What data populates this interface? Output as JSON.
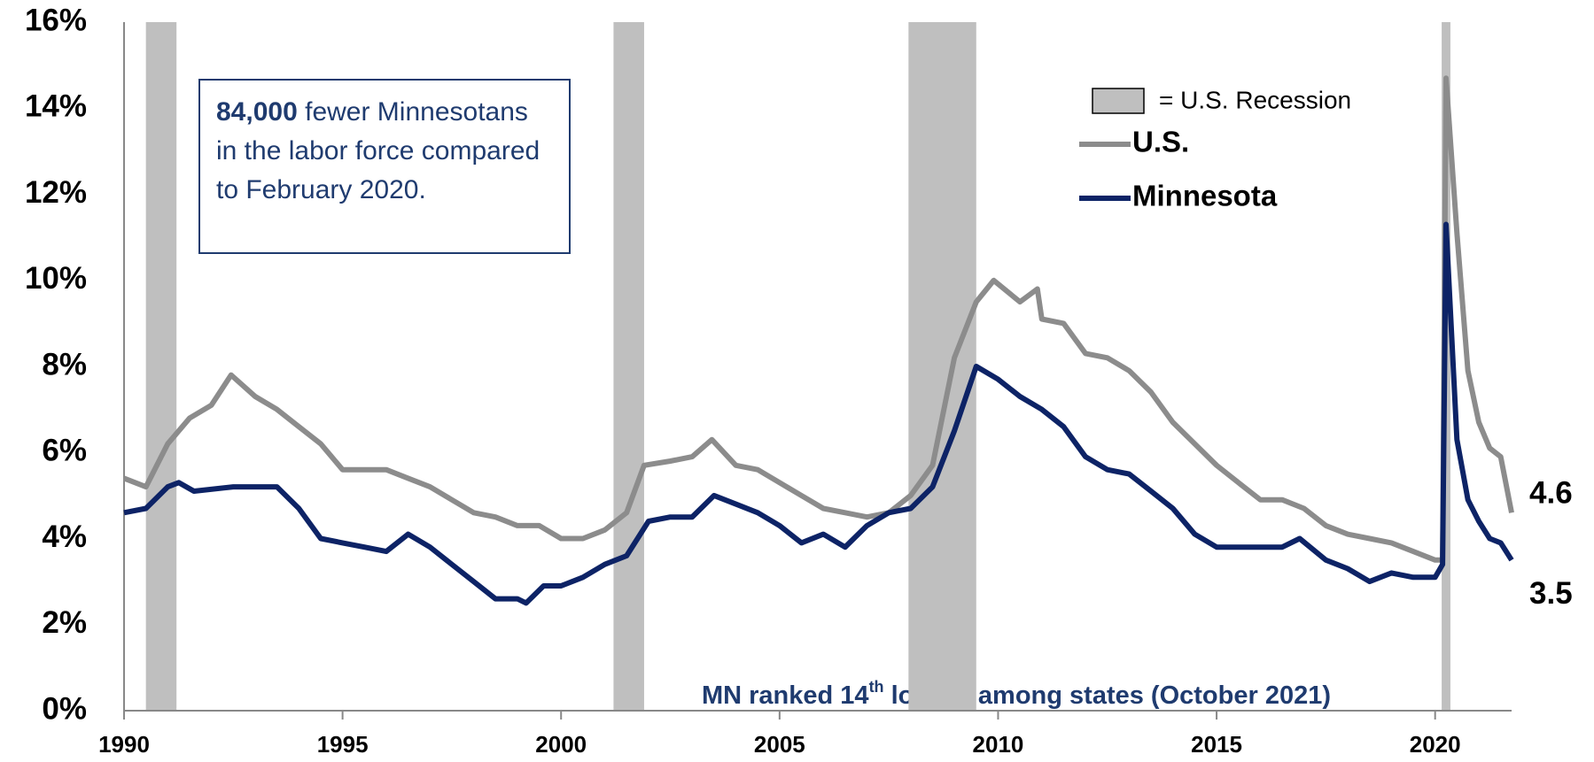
{
  "chart_data": {
    "type": "line",
    "annotation_bold": "84,000",
    "annotation": "fewer Minnesotans in the labor force compared to  February 2020.",
    "footnote_parts": [
      "MN ranked 14",
      "th",
      " lowest among states (October 2021)"
    ],
    "recession_label": "= U.S. Recession",
    "recession_color": "#bfbfbf",
    "recessions": [
      [
        1990.5,
        1991.2
      ],
      [
        2001.2,
        2001.9
      ],
      [
        2007.95,
        2009.5
      ],
      [
        2020.15,
        2020.35
      ]
    ],
    "xlim": [
      1990,
      2021.75
    ],
    "xticks": [
      1990,
      1995,
      2000,
      2005,
      2010,
      2015,
      2020
    ],
    "ylim": [
      0,
      16
    ],
    "yticks": [
      {
        "value": 0,
        "label": "0%"
      },
      {
        "value": 2,
        "label": "2%"
      },
      {
        "value": 4,
        "label": "4%"
      },
      {
        "value": 6,
        "label": "6%"
      },
      {
        "value": 8,
        "label": "8%"
      },
      {
        "value": 10,
        "label": "10%"
      },
      {
        "value": 12,
        "label": "12%"
      },
      {
        "value": 14,
        "label": "14%"
      },
      {
        "value": 16,
        "label": "16%"
      }
    ],
    "series": [
      {
        "name": "U.S.",
        "color": "#8c8c8c",
        "x": [
          1990.0,
          1990.5,
          1991.0,
          1991.5,
          1992.0,
          1992.45,
          1993.0,
          1993.5,
          1994.0,
          1994.5,
          1995.0,
          1995.5,
          1996.0,
          1996.5,
          1997.0,
          1997.5,
          1998.0,
          1998.5,
          1999.0,
          1999.5,
          2000.0,
          2000.5,
          2001.0,
          2001.5,
          2001.9,
          2002.5,
          2003.0,
          2003.45,
          2004.0,
          2004.5,
          2005.0,
          2005.5,
          2006.0,
          2006.5,
          2007.0,
          2007.5,
          2008.0,
          2008.5,
          2009.0,
          2009.5,
          2009.9,
          2010.5,
          2010.9,
          2011.0,
          2011.5,
          2012.0,
          2012.5,
          2013.0,
          2013.5,
          2014.0,
          2014.5,
          2015.0,
          2015.5,
          2016.0,
          2016.5,
          2017.0,
          2017.5,
          2018.0,
          2018.5,
          2019.0,
          2019.5,
          2020.0,
          2020.17,
          2020.25,
          2020.5,
          2020.75,
          2021.0,
          2021.25,
          2021.5,
          2021.75
        ],
        "values": [
          5.4,
          5.2,
          6.2,
          6.8,
          7.1,
          7.8,
          7.3,
          7.0,
          6.6,
          6.2,
          5.6,
          5.6,
          5.6,
          5.4,
          5.2,
          4.9,
          4.6,
          4.5,
          4.3,
          4.3,
          4.0,
          4.0,
          4.2,
          4.6,
          5.7,
          5.8,
          5.9,
          6.3,
          5.7,
          5.6,
          5.3,
          5.0,
          4.7,
          4.6,
          4.5,
          4.6,
          5.0,
          5.7,
          8.2,
          9.5,
          10.0,
          9.5,
          9.8,
          9.1,
          9.0,
          8.3,
          8.2,
          7.9,
          7.4,
          6.7,
          6.2,
          5.7,
          5.3,
          4.9,
          4.9,
          4.7,
          4.3,
          4.1,
          4.0,
          3.9,
          3.7,
          3.5,
          3.5,
          14.7,
          11.1,
          7.9,
          6.7,
          6.1,
          5.9,
          4.6
        ]
      },
      {
        "name": "Minnesota",
        "color": "#0d2366",
        "x": [
          1990.0,
          1990.5,
          1991.0,
          1991.25,
          1991.6,
          1992.5,
          1993.5,
          1994.0,
          1994.5,
          1995.0,
          1995.5,
          1996.0,
          1996.5,
          1997.0,
          1997.5,
          1998.0,
          1998.5,
          1999.0,
          1999.2,
          1999.6,
          2000.0,
          2000.5,
          2001.0,
          2001.5,
          2002.0,
          2002.5,
          2003.0,
          2003.5,
          2004.0,
          2004.5,
          2005.0,
          2005.5,
          2006.0,
          2006.5,
          2007.0,
          2007.5,
          2008.0,
          2008.5,
          2009.0,
          2009.5,
          2010.0,
          2010.5,
          2011.0,
          2011.5,
          2012.0,
          2012.5,
          2013.0,
          2013.5,
          2014.0,
          2014.5,
          2015.0,
          2015.5,
          2016.0,
          2016.5,
          2016.9,
          2017.5,
          2018.0,
          2018.5,
          2019.0,
          2019.5,
          2020.0,
          2020.17,
          2020.25,
          2020.5,
          2020.75,
          2021.0,
          2021.25,
          2021.5,
          2021.75
        ],
        "values": [
          4.6,
          4.7,
          5.2,
          5.3,
          5.1,
          5.2,
          5.2,
          4.7,
          4.0,
          3.9,
          3.8,
          3.7,
          4.1,
          3.8,
          3.4,
          3.0,
          2.6,
          2.6,
          2.5,
          2.9,
          2.9,
          3.1,
          3.4,
          3.6,
          4.4,
          4.5,
          4.5,
          5.0,
          4.8,
          4.6,
          4.3,
          3.9,
          4.1,
          3.8,
          4.3,
          4.6,
          4.7,
          5.2,
          6.5,
          8.0,
          7.7,
          7.3,
          7.0,
          6.6,
          5.9,
          5.6,
          5.5,
          5.1,
          4.7,
          4.1,
          3.8,
          3.8,
          3.8,
          3.8,
          4.0,
          3.5,
          3.3,
          3.0,
          3.2,
          3.1,
          3.1,
          3.4,
          11.3,
          6.3,
          4.9,
          4.4,
          4.0,
          3.9,
          3.5
        ]
      }
    ]
  }
}
